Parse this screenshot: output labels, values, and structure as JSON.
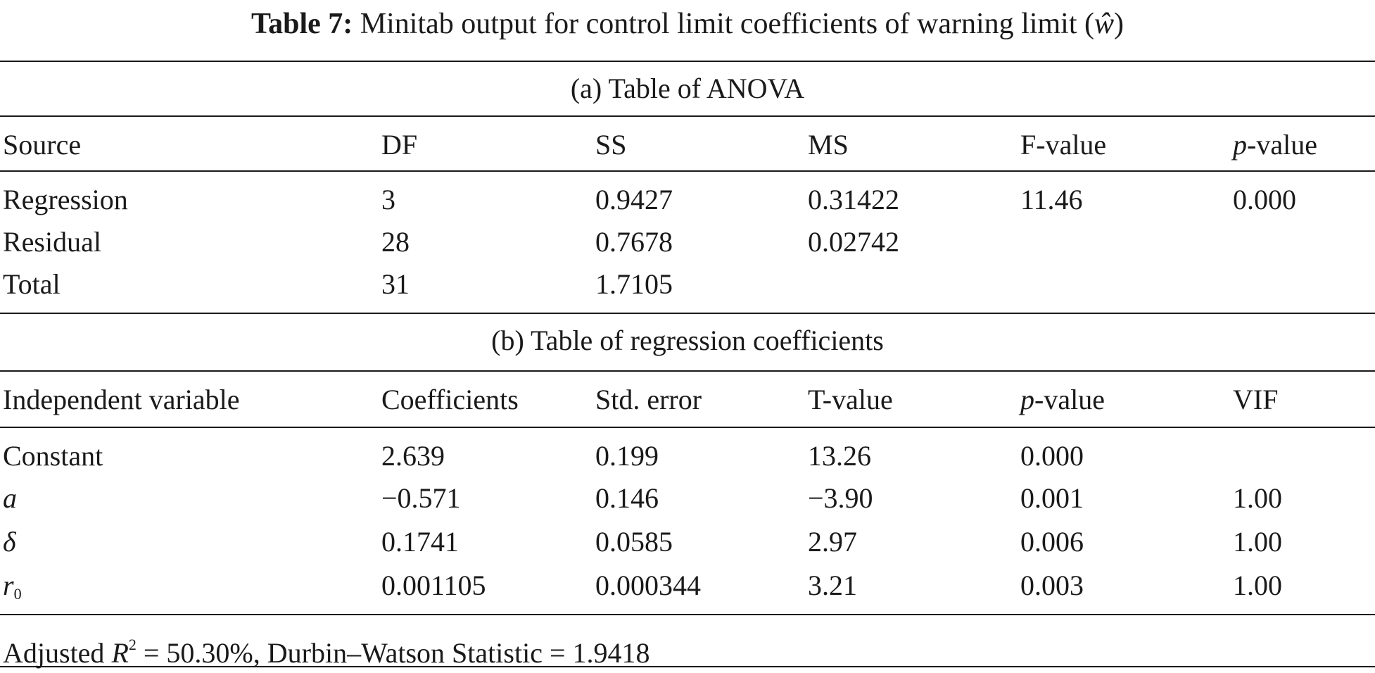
{
  "caption": {
    "label": "Table 7:",
    "text": "Minitab output for control limit coefficients of warning limit",
    "symbol_open": "(",
    "symbol": "ŵ",
    "symbol_close": ")"
  },
  "anova": {
    "title": "(a) Table of ANOVA",
    "headers": [
      "Source",
      "DF",
      "SS",
      "MS",
      "F-value",
      "p",
      "-value"
    ],
    "rows": [
      [
        "Regression",
        "3",
        "0.9427",
        "0.31422",
        "11.46",
        "0.000"
      ],
      [
        "Residual",
        "28",
        "0.7678",
        "0.02742",
        "",
        ""
      ],
      [
        "Total",
        "31",
        "1.7105",
        "",
        "",
        ""
      ]
    ]
  },
  "coefficients": {
    "title": "(b) Table of regression coefficients",
    "headers": [
      "Independent variable",
      "Coefficients",
      "Std. error",
      "T-value",
      "p",
      "-value",
      "VIF"
    ],
    "rows": [
      {
        "var": "Constant",
        "var_sub": "",
        "italic": false,
        "values": [
          "2.639",
          "0.199",
          "13.26",
          "0.000",
          ""
        ]
      },
      {
        "var": "a",
        "var_sub": "",
        "italic": true,
        "values": [
          "−0.571",
          "0.146",
          "−3.90",
          "0.001",
          "1.00"
        ]
      },
      {
        "var": "δ",
        "var_sub": "",
        "italic": true,
        "values": [
          "0.1741",
          "0.0585",
          "2.97",
          "0.006",
          "1.00"
        ]
      },
      {
        "var": "r",
        "var_sub": "0",
        "italic": true,
        "values": [
          "0.001105",
          "0.000344",
          "3.21",
          "0.003",
          "1.00"
        ]
      }
    ]
  },
  "footer": {
    "prefix": "Adjusted ",
    "r": "R",
    "r_sup": "2",
    "middle": " = 50.30%, Durbin–Watson Statistic = 1.9418"
  }
}
